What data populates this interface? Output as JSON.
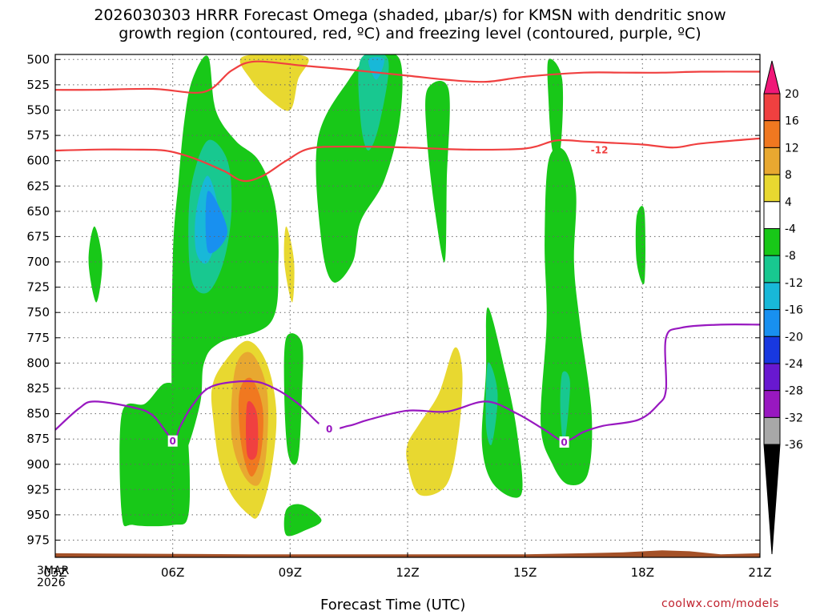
{
  "chart_data": {
    "type": "heatmap",
    "title_line1": "2026030303 HRRR Forecast Omega (shaded, μbar/s) for KMSN with dendritic snow",
    "title_line2": "growth region (contoured, red, ºC) and freezing level (contoured, purple, ºC)",
    "xlabel": "Forecast Time (UTC)",
    "start_date_lines": [
      "3MAR",
      "2026"
    ],
    "credit": "coolwx.com/models",
    "x_ticks": [
      {
        "hour": 3,
        "label": "03Z"
      },
      {
        "hour": 6,
        "label": "06Z"
      },
      {
        "hour": 9,
        "label": "09Z"
      },
      {
        "hour": 12,
        "label": "12Z"
      },
      {
        "hour": 15,
        "label": "15Z"
      },
      {
        "hour": 18,
        "label": "18Z"
      },
      {
        "hour": 21,
        "label": "21Z"
      }
    ],
    "xlim": [
      3,
      21
    ],
    "y_ticks": [
      500,
      525,
      550,
      575,
      600,
      625,
      650,
      675,
      700,
      725,
      750,
      775,
      800,
      825,
      850,
      875,
      900,
      925,
      950,
      975
    ],
    "ylim": [
      495,
      992
    ],
    "colorbar": {
      "labels": [
        "20",
        "16",
        "12",
        "8",
        "4",
        "-4",
        "-8",
        "-12",
        "-16",
        "-20",
        "-24",
        "-28",
        "-32",
        "-36"
      ],
      "colors": [
        "#f01878",
        "#f04040",
        "#f07820",
        "#e8a830",
        "#e8d830",
        "#ffffff",
        "#18c818",
        "#18c890",
        "#18b8d8",
        "#1890f0",
        "#1838e0",
        "#6818d0",
        "#9818c0",
        "#a8a8a8",
        "#000000"
      ]
    },
    "shading_colors": {
      "c4": "#e8d830",
      "c8": "#e8a830",
      "c12": "#f07820",
      "c16": "#f04040",
      "m4": "#18c818",
      "m8": "#18c890",
      "m12": "#18b8d8",
      "m16": "#1890f0"
    },
    "shading": [
      {
        "level": "m4",
        "pts": [
          [
            6.0,
            700
          ],
          [
            6.15,
            620
          ],
          [
            6.3,
            560
          ],
          [
            6.5,
            520
          ],
          [
            6.9,
            497
          ],
          [
            7.1,
            550
          ],
          [
            7.6,
            580
          ],
          [
            8.2,
            600
          ],
          [
            8.6,
            640
          ],
          [
            8.7,
            700
          ],
          [
            8.5,
            760
          ],
          [
            7.2,
            780
          ],
          [
            6.8,
            800
          ],
          [
            6.7,
            840
          ],
          [
            6.3,
            890
          ],
          [
            6.0,
            880
          ]
        ]
      },
      {
        "level": "m4",
        "pts": [
          [
            4.7,
            850
          ],
          [
            5.3,
            840
          ],
          [
            5.8,
            820
          ],
          [
            6.2,
            830
          ],
          [
            6.4,
            880
          ],
          [
            6.4,
            950
          ],
          [
            6.0,
            960
          ],
          [
            5.0,
            960
          ],
          [
            4.7,
            950
          ]
        ]
      },
      {
        "level": "m4",
        "pts": [
          [
            9.7,
            580
          ],
          [
            10.5,
            520
          ],
          [
            11.1,
            497
          ],
          [
            11.8,
            500
          ],
          [
            11.8,
            560
          ],
          [
            11.4,
            620
          ],
          [
            10.8,
            660
          ],
          [
            10.6,
            700
          ],
          [
            10.1,
            720
          ],
          [
            9.8,
            680
          ]
        ]
      },
      {
        "level": "m4",
        "pts": [
          [
            12.5,
            530
          ],
          [
            13.05,
            530
          ],
          [
            13.0,
            620
          ],
          [
            12.95,
            700
          ],
          [
            12.7,
            650
          ],
          [
            12.5,
            580
          ]
        ]
      },
      {
        "level": "m4",
        "pts": [
          [
            15.6,
            500
          ],
          [
            15.95,
            520
          ],
          [
            15.9,
            590
          ],
          [
            15.7,
            590
          ],
          [
            15.6,
            540
          ]
        ]
      },
      {
        "level": "m4",
        "pts": [
          [
            15.6,
            600
          ],
          [
            16.0,
            590
          ],
          [
            16.3,
            630
          ],
          [
            16.25,
            700
          ],
          [
            16.4,
            760
          ],
          [
            16.7,
            850
          ],
          [
            16.6,
            910
          ],
          [
            16.1,
            920
          ],
          [
            15.7,
            900
          ],
          [
            15.4,
            860
          ],
          [
            15.55,
            760
          ],
          [
            15.5,
            680
          ]
        ]
      },
      {
        "level": "m4",
        "pts": [
          [
            14.05,
            745
          ],
          [
            14.5,
            810
          ],
          [
            14.8,
            870
          ],
          [
            14.9,
            930
          ],
          [
            14.2,
            920
          ],
          [
            13.9,
            880
          ],
          [
            14.0,
            810
          ]
        ]
      },
      {
        "level": "m4",
        "pts": [
          [
            4.0,
            665
          ],
          [
            4.2,
            700
          ],
          [
            4.05,
            740
          ],
          [
            3.85,
            700
          ]
        ]
      },
      {
        "level": "m4",
        "pts": [
          [
            17.85,
            655
          ],
          [
            18.05,
            650
          ],
          [
            18.05,
            720
          ],
          [
            17.85,
            700
          ]
        ]
      },
      {
        "level": "m4",
        "pts": [
          [
            8.9,
            775
          ],
          [
            9.3,
            780
          ],
          [
            9.3,
            830
          ],
          [
            9.2,
            895
          ],
          [
            8.95,
            890
          ],
          [
            8.85,
            830
          ]
        ]
      },
      {
        "level": "m4",
        "pts": [
          [
            8.9,
            945
          ],
          [
            9.3,
            940
          ],
          [
            9.8,
            955
          ],
          [
            9.4,
            965
          ],
          [
            8.9,
            970
          ]
        ]
      },
      {
        "level": "m8",
        "pts": [
          [
            6.4,
            670
          ],
          [
            6.5,
            620
          ],
          [
            6.9,
            580
          ],
          [
            7.4,
            600
          ],
          [
            7.5,
            650
          ],
          [
            7.3,
            700
          ],
          [
            6.9,
            730
          ],
          [
            6.5,
            720
          ]
        ]
      },
      {
        "level": "m8",
        "pts": [
          [
            10.8,
            500
          ],
          [
            11.5,
            500
          ],
          [
            11.3,
            560
          ],
          [
            11.0,
            590
          ],
          [
            10.8,
            560
          ]
        ]
      },
      {
        "level": "m8",
        "pts": [
          [
            15.95,
            810
          ],
          [
            16.15,
            820
          ],
          [
            16.0,
            880
          ],
          [
            15.9,
            845
          ]
        ]
      },
      {
        "level": "m8",
        "pts": [
          [
            14.05,
            800
          ],
          [
            14.3,
            830
          ],
          [
            14.15,
            880
          ],
          [
            14.0,
            860
          ]
        ]
      },
      {
        "level": "m12",
        "pts": [
          [
            6.6,
            650
          ],
          [
            6.9,
            615
          ],
          [
            7.2,
            660
          ],
          [
            6.9,
            700
          ],
          [
            6.6,
            690
          ]
        ]
      },
      {
        "level": "m12",
        "pts": [
          [
            11.0,
            500
          ],
          [
            11.4,
            500
          ],
          [
            11.2,
            520
          ]
        ]
      },
      {
        "level": "m16",
        "pts": [
          [
            6.9,
            630
          ],
          [
            7.4,
            670
          ],
          [
            6.9,
            690
          ]
        ]
      },
      {
        "level": "c4",
        "pts": [
          [
            7.8,
            497
          ],
          [
            9.4,
            497
          ],
          [
            9.2,
            520
          ],
          [
            9.0,
            550
          ],
          [
            8.5,
            540
          ],
          [
            8.0,
            520
          ]
        ]
      },
      {
        "level": "c4",
        "pts": [
          [
            7.0,
            825
          ],
          [
            7.3,
            800
          ],
          [
            7.9,
            778
          ],
          [
            8.4,
            800
          ],
          [
            8.65,
            850
          ],
          [
            8.5,
            910
          ],
          [
            8.2,
            950
          ],
          [
            7.95,
            950
          ],
          [
            7.5,
            930
          ],
          [
            7.2,
            900
          ],
          [
            7.05,
            860
          ]
        ]
      },
      {
        "level": "c4",
        "pts": [
          [
            8.9,
            665
          ],
          [
            9.1,
            700
          ],
          [
            9.05,
            740
          ],
          [
            8.85,
            700
          ]
        ]
      },
      {
        "level": "c4",
        "pts": [
          [
            12.3,
            860
          ],
          [
            12.8,
            830
          ],
          [
            13.2,
            785
          ],
          [
            13.4,
            810
          ],
          [
            13.3,
            870
          ],
          [
            13.0,
            920
          ],
          [
            12.3,
            930
          ],
          [
            12.0,
            900
          ],
          [
            12.0,
            880
          ]
        ]
      },
      {
        "level": "c8",
        "pts": [
          [
            7.6,
            805
          ],
          [
            8.0,
            790
          ],
          [
            8.4,
            825
          ],
          [
            8.4,
            885
          ],
          [
            8.2,
            920
          ],
          [
            7.8,
            910
          ],
          [
            7.5,
            870
          ]
        ]
      },
      {
        "level": "c12",
        "pts": [
          [
            7.7,
            830
          ],
          [
            8.0,
            815
          ],
          [
            8.3,
            845
          ],
          [
            8.25,
            890
          ],
          [
            8.0,
            912
          ],
          [
            7.75,
            880
          ]
        ]
      },
      {
        "level": "c16",
        "pts": [
          [
            7.9,
            840
          ],
          [
            8.15,
            850
          ],
          [
            8.15,
            890
          ],
          [
            7.9,
            890
          ]
        ]
      }
    ],
    "ground": {
      "color": "#a45128",
      "top_pts": [
        [
          3,
          988
        ],
        [
          8,
          989
        ],
        [
          15,
          989
        ],
        [
          16.5,
          988
        ],
        [
          17.5,
          987
        ],
        [
          18.5,
          985
        ],
        [
          19.2,
          986
        ],
        [
          20,
          989
        ],
        [
          21,
          988
        ]
      ],
      "base": 992
    },
    "contours": [
      {
        "name": "dgz-minus12",
        "color": "#f04040",
        "label": "-12",
        "label_at": [
          16.9,
          589
        ],
        "pts": [
          [
            3,
            590
          ],
          [
            4,
            589
          ],
          [
            5,
            589
          ],
          [
            5.8,
            590
          ],
          [
            6.5,
            597
          ],
          [
            7.3,
            610
          ],
          [
            7.8,
            620
          ],
          [
            8.3,
            615
          ],
          [
            8.9,
            600
          ],
          [
            9.5,
            588
          ],
          [
            10.5,
            586
          ],
          [
            12,
            587
          ],
          [
            13.5,
            589
          ],
          [
            15,
            588
          ],
          [
            15.8,
            580
          ],
          [
            16.5,
            581
          ],
          [
            17,
            582
          ],
          [
            18,
            584
          ],
          [
            18.8,
            587
          ],
          [
            19.5,
            583
          ],
          [
            21,
            578
          ]
        ]
      },
      {
        "name": "dgz-upper",
        "color": "#f04040",
        "label": "",
        "pts": [
          [
            3,
            530
          ],
          [
            4,
            530
          ],
          [
            5.5,
            529
          ],
          [
            6.8,
            532
          ],
          [
            7.5,
            511
          ],
          [
            8.1,
            502
          ],
          [
            9.3,
            506
          ],
          [
            10.5,
            510
          ],
          [
            12,
            516
          ],
          [
            13,
            520
          ],
          [
            14,
            522
          ],
          [
            15,
            517
          ],
          [
            16.5,
            513
          ],
          [
            17.5,
            513
          ],
          [
            18.5,
            513
          ],
          [
            19.5,
            512
          ],
          [
            21,
            512
          ]
        ]
      },
      {
        "name": "freezing-level",
        "color": "#9818c0",
        "label": "0",
        "label_at": [
          10.0,
          865
        ],
        "pts": [
          [
            3,
            866
          ],
          [
            3.6,
            845
          ],
          [
            4,
            838
          ],
          [
            5,
            844
          ],
          [
            5.5,
            852
          ],
          [
            6,
            875
          ],
          [
            6.2,
            862
          ],
          [
            6.5,
            842
          ],
          [
            7,
            823
          ],
          [
            8,
            818
          ],
          [
            8.6,
            825
          ],
          [
            9.2,
            840
          ],
          [
            9.9,
            864
          ],
          [
            10.5,
            862
          ],
          [
            11,
            856
          ],
          [
            12,
            847
          ],
          [
            13,
            848
          ],
          [
            14,
            838
          ],
          [
            14.8,
            850
          ],
          [
            15.5,
            866
          ],
          [
            16,
            877
          ],
          [
            16.5,
            868
          ],
          [
            17,
            862
          ],
          [
            17.9,
            856
          ],
          [
            18.4,
            841
          ],
          [
            18.6,
            826
          ],
          [
            18.6,
            775
          ],
          [
            19,
            765
          ],
          [
            20,
            762
          ],
          [
            21,
            762
          ]
        ]
      }
    ],
    "contour_labels_extra": [
      {
        "label": "0",
        "hour": 6.0,
        "pressure": 877,
        "color": "#9818c0"
      },
      {
        "label": "0",
        "hour": 16.0,
        "pressure": 878,
        "color": "#9818c0"
      }
    ]
  }
}
